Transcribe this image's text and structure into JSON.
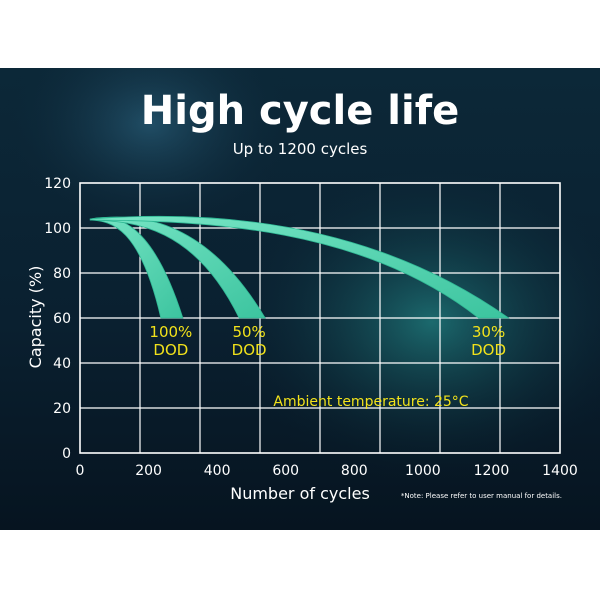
{
  "chart_data": {
    "type": "area",
    "title": "High cycle life",
    "subtitle": "Up to 1200 cycles",
    "xlabel": "Number of cycles",
    "ylabel": "Capacity (%)",
    "xlim": [
      0,
      1400
    ],
    "ylim": [
      0,
      120
    ],
    "xticks": [
      0,
      200,
      400,
      600,
      800,
      1000,
      1200,
      1400
    ],
    "yticks": [
      0,
      20,
      40,
      60,
      80,
      100,
      120
    ],
    "grid": true,
    "series": [
      {
        "name_line1": "100%",
        "name_line2": "DOD",
        "x": [
          30,
          300
        ],
        "y": [
          104,
          60
        ]
      },
      {
        "name_line1": "50%",
        "name_line2": "DOD",
        "x": [
          30,
          540
        ],
        "y": [
          104,
          60
        ]
      },
      {
        "name_line1": "30%",
        "name_line2": "DOD",
        "x": [
          30,
          1250
        ],
        "y": [
          104,
          60
        ]
      }
    ],
    "annotation": "Ambient temperature: 25°C",
    "note": "*Note: Please refer to user manual for details."
  },
  "colors": {
    "background_top": "#0b2233",
    "background_bottom": "#071522",
    "curve_fill": "#4fd3b0",
    "grid": "#ffffff",
    "label": "#f2e21b"
  }
}
